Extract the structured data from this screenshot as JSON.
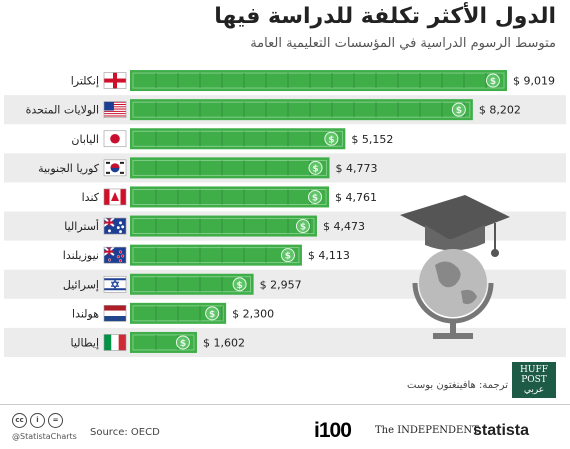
{
  "header": {
    "title": "الدول الأكثر تكلفة للدراسة فيها",
    "subtitle": "متوسط الرسوم الدراسية في المؤسسات التعليمية العامة"
  },
  "chart_data": {
    "type": "bar",
    "orientation": "horizontal",
    "title": "الدول الأكثر تكلفة للدراسة فيها",
    "subtitle": "متوسط الرسوم الدراسية في المؤسسات التعليمية العامة",
    "categories": [
      "إنكلترا",
      "الولايات المتحدة",
      "اليابان",
      "كوريا الجنوبية",
      "كندا",
      "أستراليا",
      "نيوزيلندا",
      "إسرائيل",
      "هولندا",
      "إيطاليا"
    ],
    "values": [
      9019,
      8202,
      5152,
      4773,
      4761,
      4473,
      4113,
      2957,
      2300,
      1602
    ],
    "value_labels": [
      "$ 9,019",
      "$ 8,202",
      "$ 5,152",
      "$ 4,773",
      "$ 4,761",
      "$ 4,473",
      "$ 4,113",
      "$ 2,957",
      "$ 2,300",
      "$ 1,602"
    ],
    "flags": [
      "england",
      "usa",
      "japan",
      "south-korea",
      "canada",
      "australia",
      "new-zealand",
      "israel",
      "netherlands",
      "italy"
    ],
    "bar_color": "#3fae49",
    "xlim": [
      0,
      9019
    ],
    "grid": false
  },
  "footer": {
    "credit": "ترجمة: هافينغتون بوست",
    "huffpost": [
      "HUFF",
      "POST",
      "عربي"
    ],
    "cc_icons": [
      "cc",
      "i",
      "="
    ],
    "handle": "@StatistaCharts",
    "source": "Source: OECD",
    "i100": "i100",
    "independent": "The INDEPENDENT",
    "statista": "statista"
  }
}
